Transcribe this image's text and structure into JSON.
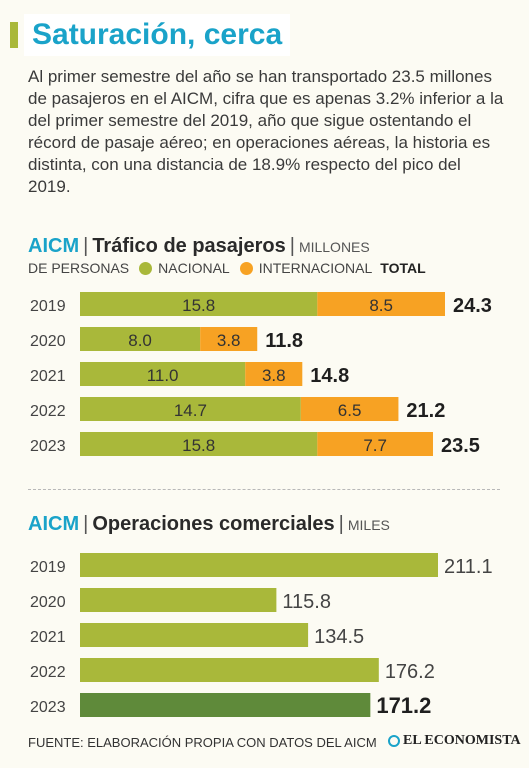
{
  "title": "Saturación, cerca",
  "intro": "Al primer semestre del año se han transportado 23.5 millones de pasajeros en el AICM, cifra que es apenas 3.2% inferior a la del primer semestre del 2019, año que sigue ostentando el récord de pasaje aéreo; en operaciones aéreas, la historia es distinta, con una distancia de 18.9% respecto del pico del 2019.",
  "colors": {
    "nacional": "#a9b83a",
    "internacional": "#f7a223",
    "highlight": "#5f8a3a",
    "brand": "#1aa3c9"
  },
  "chart_data": [
    {
      "type": "bar",
      "orientation": "horizontal",
      "stacked": true,
      "brand": "AICM",
      "title": "Tráfico de pasajeros",
      "unit_line1": "MILLONES",
      "unit_line2": "DE PERSONAS",
      "categories": [
        "2019",
        "2020",
        "2021",
        "2022",
        "2023"
      ],
      "series": [
        {
          "name": "NACIONAL",
          "values": [
            15.8,
            8.0,
            11.0,
            14.7,
            15.8
          ],
          "labels": [
            "15.8",
            "8.0",
            "11.0",
            "14.7",
            "15.8"
          ]
        },
        {
          "name": "INTERNACIONAL",
          "values": [
            8.5,
            3.8,
            3.8,
            6.5,
            7.7
          ],
          "labels": [
            "8.5",
            "3.8",
            "3.8",
            "6.5",
            "7.7"
          ]
        }
      ],
      "total_label": "TOTAL",
      "totals": [
        "24.3",
        "11.8",
        "14.8",
        "21.2",
        "23.5"
      ],
      "xlim": [
        0,
        24.3
      ]
    },
    {
      "type": "bar",
      "orientation": "horizontal",
      "brand": "AICM",
      "title": "Operaciones comerciales",
      "unit": "MILES",
      "categories": [
        "2019",
        "2020",
        "2021",
        "2022",
        "2023"
      ],
      "values": [
        211.1,
        115.8,
        134.5,
        176.2,
        171.2
      ],
      "labels": [
        "211.1",
        "115.8",
        "134.5",
        "176.2",
        "171.2"
      ],
      "highlight_index": 4,
      "xlim": [
        0,
        211.1
      ]
    }
  ],
  "footer": {
    "source": "FUENTE: ELABORACIÓN PROPIA CON DATOS DEL AICM",
    "logo": "EL ECONOMISTA",
    "logo_icon": "economista-logo-icon"
  }
}
